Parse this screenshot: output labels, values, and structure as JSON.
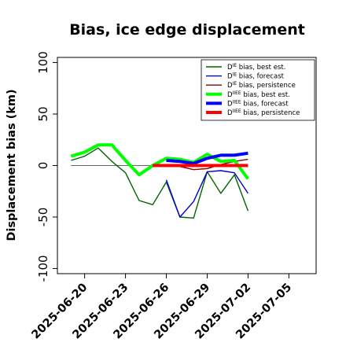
{
  "chart_data": {
    "type": "line",
    "title": "Bias, ice edge displacement",
    "xlabel": "",
    "ylabel": "Displacement bias (km)",
    "xlim": [
      "2025-06-18",
      "2025-07-07"
    ],
    "ylim": [
      -105,
      105
    ],
    "yticks": [
      -100,
      -50,
      0,
      50,
      100
    ],
    "xticks": [
      "2025-06-20",
      "2025-06-23",
      "2025-06-26",
      "2025-06-29",
      "2025-07-02",
      "2025-07-05"
    ],
    "highlight_xtick": "2025-06-26",
    "highlight_color": "#228b22",
    "zero_line": true,
    "legend_position": "top-right",
    "series": [
      {
        "name": "Dᴵᴱ bias, best est.",
        "legend_sup": "IE",
        "legend_rest": " bias, best est.",
        "color": "#006400",
        "width": 1.4,
        "x": [
          "2025-06-19",
          "2025-06-20",
          "2025-06-21",
          "2025-06-22",
          "2025-06-23",
          "2025-06-24",
          "2025-06-25",
          "2025-06-26",
          "2025-06-27",
          "2025-06-28",
          "2025-06-29",
          "2025-06-30",
          "2025-07-01",
          "2025-07-02"
        ],
        "y": [
          5,
          9,
          17,
          4,
          -7,
          -34,
          -38,
          -16,
          -50,
          -51,
          -6,
          -27,
          -9,
          -44
        ]
      },
      {
        "name": "Dᴵᴱ bias, forecast",
        "legend_sup": "IE",
        "legend_rest": " bias, forecast",
        "color": "#0000cd",
        "width": 1.4,
        "x": [
          "2025-06-26",
          "2025-06-27",
          "2025-06-28",
          "2025-06-29",
          "2025-06-30",
          "2025-07-01",
          "2025-07-02"
        ],
        "y": [
          -14,
          -50,
          -35,
          -6,
          -5,
          -7,
          -27
        ]
      },
      {
        "name": "Dᴵᴱ bias, persistence",
        "legend_sup": "IE",
        "legend_rest": " bias, persistence",
        "color": "#8b0000",
        "width": 1.4,
        "x": [
          "2025-06-26",
          "2025-06-27",
          "2025-06-28",
          "2025-06-29",
          "2025-06-30",
          "2025-07-01",
          "2025-07-02"
        ],
        "y": [
          1,
          -1,
          -4,
          -3,
          1,
          4,
          6
        ]
      },
      {
        "name": "Dᴵᴱᴱ bias, best est.",
        "legend_sup": "IIEE",
        "legend_rest": " bias, best est.",
        "color": "#00ff00",
        "width": 4,
        "x": [
          "2025-06-19",
          "2025-06-20",
          "2025-06-21",
          "2025-06-22",
          "2025-06-23",
          "2025-06-24",
          "2025-06-25",
          "2025-06-26",
          "2025-06-27",
          "2025-06-28",
          "2025-06-29",
          "2025-06-30",
          "2025-07-01",
          "2025-07-02"
        ],
        "y": [
          9,
          13,
          20,
          20,
          5,
          -9,
          0,
          7,
          6,
          3,
          11,
          4,
          5,
          -13
        ]
      },
      {
        "name": "Dᴵᴱᴱ bias, forecast",
        "legend_sup": "IIEE",
        "legend_rest": " bias, forecast",
        "color": "#0000ff",
        "width": 4,
        "x": [
          "2025-06-26",
          "2025-06-27",
          "2025-06-28",
          "2025-06-29",
          "2025-06-30",
          "2025-07-01",
          "2025-07-02"
        ],
        "y": [
          5,
          4,
          2,
          7,
          10,
          10,
          12
        ]
      },
      {
        "name": "Dᴵᴱᴱ bias, persistence",
        "legend_sup": "IIEE",
        "legend_rest": " bias, persistence",
        "color": "#ff0000",
        "width": 4,
        "x": [
          "2025-06-25",
          "2025-06-26",
          "2025-06-27",
          "2025-06-28",
          "2025-06-29",
          "2025-06-30",
          "2025-07-01",
          "2025-07-02"
        ],
        "y": [
          0,
          0,
          0,
          0,
          0,
          0,
          0,
          0
        ]
      }
    ]
  }
}
